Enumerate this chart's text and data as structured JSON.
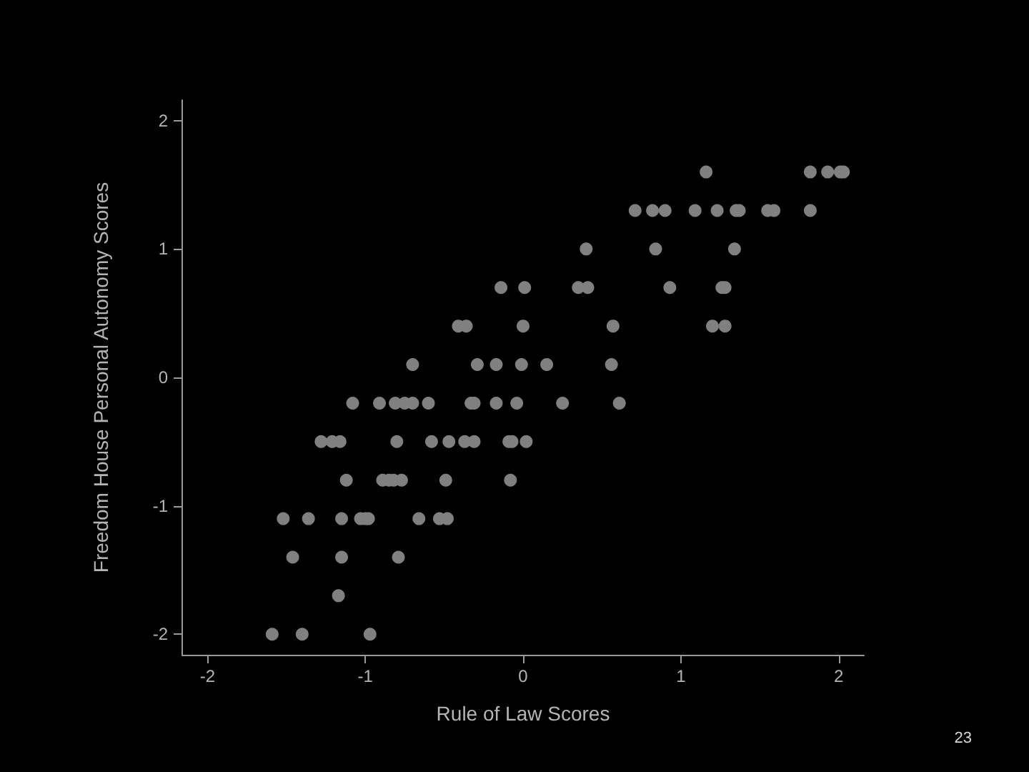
{
  "chart_data": {
    "type": "scatter",
    "xlabel": "Rule of Law Scores",
    "ylabel": "Freedom House Personal Autonomy Scores",
    "annotations": [
      "23"
    ],
    "color": "#808080",
    "marker": "circle",
    "x": [
      1.16,
      1.82,
      1.93,
      2.01,
      2.03,
      0.71,
      0.82,
      0.9,
      1.09,
      1.23,
      1.35,
      1.37,
      1.55,
      1.59,
      1.82,
      0.4,
      0.84,
      1.34,
      -0.14,
      0.01,
      0.35,
      0.41,
      0.93,
      1.26,
      1.28,
      -0.41,
      -0.36,
      0,
      0.57,
      1.2,
      1.28,
      -0.7,
      -0.29,
      -0.17,
      -0.01,
      0.15,
      0.56,
      -1.08,
      -0.91,
      -0.81,
      -0.75,
      -0.7,
      -0.6,
      -0.33,
      -0.31,
      -0.17,
      -0.04,
      0.25,
      0.61,
      -1.28,
      -1.21,
      -1.16,
      -0.8,
      -0.58,
      -0.47,
      -0.37,
      -0.31,
      -0.09,
      -0.07,
      0.02,
      -1.12,
      -0.89,
      -0.85,
      -0.82,
      -0.77,
      -0.49,
      -0.08,
      -1.52,
      -1.36,
      -1.15,
      -1.03,
      -1,
      -0.98,
      -0.66,
      -0.53,
      -0.48,
      -1.46,
      -1.15,
      -0.79,
      -1.17,
      -1.59,
      -1.4,
      -0.97
    ],
    "values": [
      1.6,
      1.6,
      1.6,
      1.6,
      1.6,
      1.3,
      1.3,
      1.3,
      1.3,
      1.3,
      1.3,
      1.3,
      1.3,
      1.3,
      1.3,
      1,
      1,
      1,
      0.7,
      0.7,
      0.7,
      0.7,
      0.7,
      0.7,
      0.7,
      0.4,
      0.4,
      0.4,
      0.4,
      0.4,
      0.4,
      0.1,
      0.1,
      0.1,
      0.1,
      0.1,
      0.1,
      -0.2,
      -0.2,
      -0.2,
      -0.2,
      -0.2,
      -0.2,
      -0.2,
      -0.2,
      -0.2,
      -0.2,
      -0.2,
      -0.2,
      -0.5,
      -0.5,
      -0.5,
      -0.5,
      -0.5,
      -0.5,
      -0.5,
      -0.5,
      -0.5,
      -0.5,
      -0.5,
      -0.8,
      -0.8,
      -0.8,
      -0.8,
      -0.8,
      -0.8,
      -0.8,
      -1.1,
      -1.1,
      -1.1,
      -1.1,
      -1.1,
      -1.1,
      -1.1,
      -1.1,
      -1.1,
      -1.4,
      -1.4,
      -1.4,
      -1.7,
      -2,
      -2,
      -2
    ],
    "xlim": [
      -2.16,
      2.16
    ],
    "ylim": [
      -2.16,
      2.16
    ],
    "xticks": [
      -2,
      -1,
      0,
      1,
      2
    ],
    "yticks": [
      -2,
      -1,
      0,
      1,
      2
    ]
  }
}
